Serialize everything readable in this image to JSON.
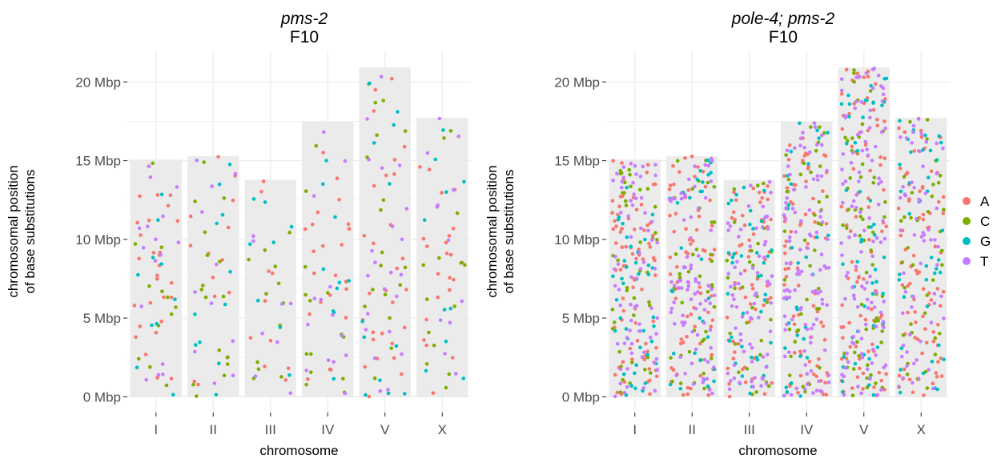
{
  "chart_data": [
    {
      "type": "scatter",
      "title": "pms-2",
      "subtitle": "F10",
      "xlabel": "chromosome",
      "ylabel_line1": "chromosomal position",
      "ylabel_line2": "of base substitutions",
      "categories": [
        "I",
        "II",
        "III",
        "IV",
        "V",
        "X"
      ],
      "y_ticks": [
        "0 Mbp",
        "5 Mbp",
        "10 Mbp",
        "15 Mbp",
        "20 Mbp"
      ],
      "ylim_mbp": [
        -1,
        22
      ],
      "chromosome_lengths_mbp": [
        15.07,
        15.28,
        13.78,
        17.49,
        20.92,
        17.72
      ],
      "counts": {
        "I": {
          "A": 27,
          "C": 12,
          "G": 10,
          "T": 16
        },
        "II": {
          "A": 14,
          "C": 16,
          "G": 11,
          "T": 11
        },
        "III": {
          "A": 10,
          "C": 12,
          "G": 8,
          "T": 8
        },
        "IV": {
          "A": 22,
          "C": 14,
          "G": 10,
          "T": 14
        },
        "V": {
          "A": 28,
          "C": 18,
          "G": 12,
          "T": 22
        },
        "X": {
          "A": 22,
          "C": 14,
          "G": 10,
          "T": 12
        }
      },
      "grid": true,
      "legend": "none",
      "seed": 11
    },
    {
      "type": "scatter",
      "title": "pole-4; pms-2",
      "subtitle": "F10",
      "xlabel": "chromosome",
      "ylabel_line1": "chromosomal position",
      "ylabel_line2": "of base substitutions",
      "categories": [
        "I",
        "II",
        "III",
        "IV",
        "V",
        "X"
      ],
      "y_ticks": [
        "0 Mbp",
        "5 Mbp",
        "10 Mbp",
        "15 Mbp",
        "20 Mbp"
      ],
      "ylim_mbp": [
        -1,
        22
      ],
      "chromosome_lengths_mbp": [
        15.07,
        15.28,
        13.78,
        17.49,
        20.92,
        17.72
      ],
      "counts": {
        "I": {
          "A": 80,
          "C": 40,
          "G": 40,
          "T": 70
        },
        "II": {
          "A": 70,
          "C": 40,
          "G": 30,
          "T": 80
        },
        "III": {
          "A": 60,
          "C": 30,
          "G": 40,
          "T": 70
        },
        "IV": {
          "A": 80,
          "C": 40,
          "G": 30,
          "T": 100
        },
        "V": {
          "A": 90,
          "C": 60,
          "G": 50,
          "T": 110
        },
        "X": {
          "A": 80,
          "C": 40,
          "G": 40,
          "T": 60
        }
      },
      "grid": true,
      "legend": "right",
      "seed": 23
    }
  ],
  "legend": {
    "entries": [
      {
        "label": "A",
        "color": "#F8766D"
      },
      {
        "label": "C",
        "color": "#7CAE00"
      },
      {
        "label": "G",
        "color": "#00BFC4"
      },
      {
        "label": "T",
        "color": "#C77CFF"
      }
    ]
  },
  "colors": {
    "panel_bg": "#FFFFFF",
    "grid": "#EBEBEB",
    "chromosome_bar": "#EBEBEB",
    "axis_text": "#4D4D4D",
    "tick": "#333333",
    "axis_title": "#000000"
  }
}
